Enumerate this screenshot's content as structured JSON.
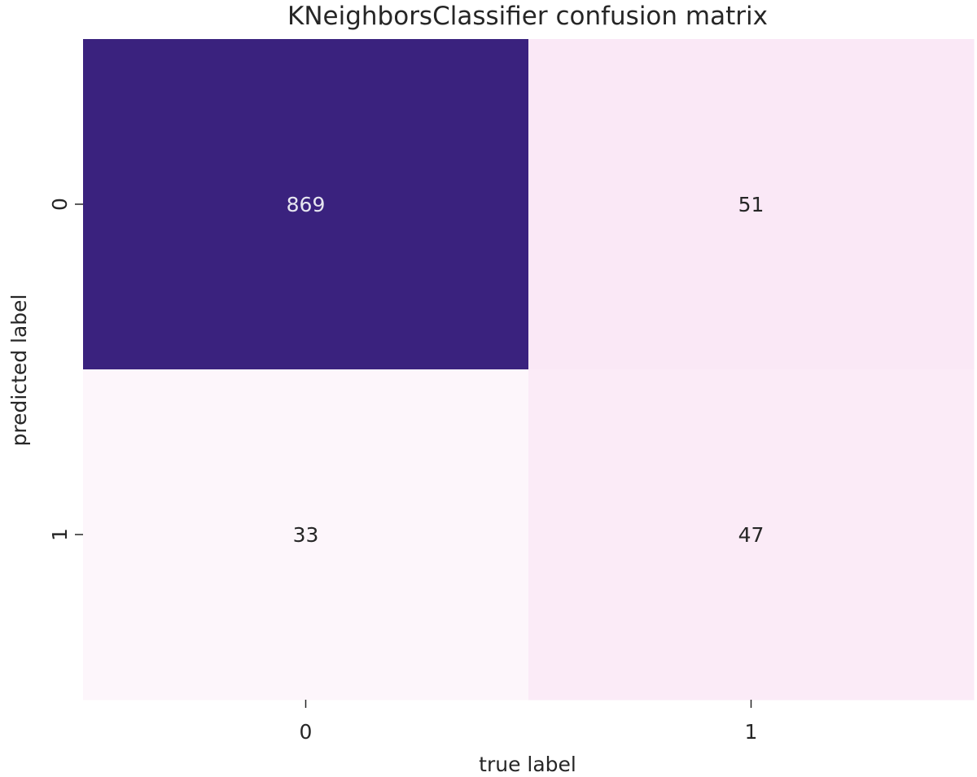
{
  "chart_data": {
    "type": "heatmap",
    "title": "KNeighborsClassifier confusion matrix",
    "xlabel": "true label",
    "ylabel": "predicted label",
    "x_categories": [
      "0",
      "1"
    ],
    "y_categories": [
      "0",
      "1"
    ],
    "values": [
      [
        869,
        51
      ],
      [
        33,
        47
      ]
    ],
    "colorbar": false,
    "annotations": true,
    "colors": {
      "high": "#3a227e",
      "mid": "#f9e3f4",
      "low": "#fdf6fb",
      "text_on_dark": "#e6e6f0",
      "text_on_light": "#262626"
    }
  }
}
